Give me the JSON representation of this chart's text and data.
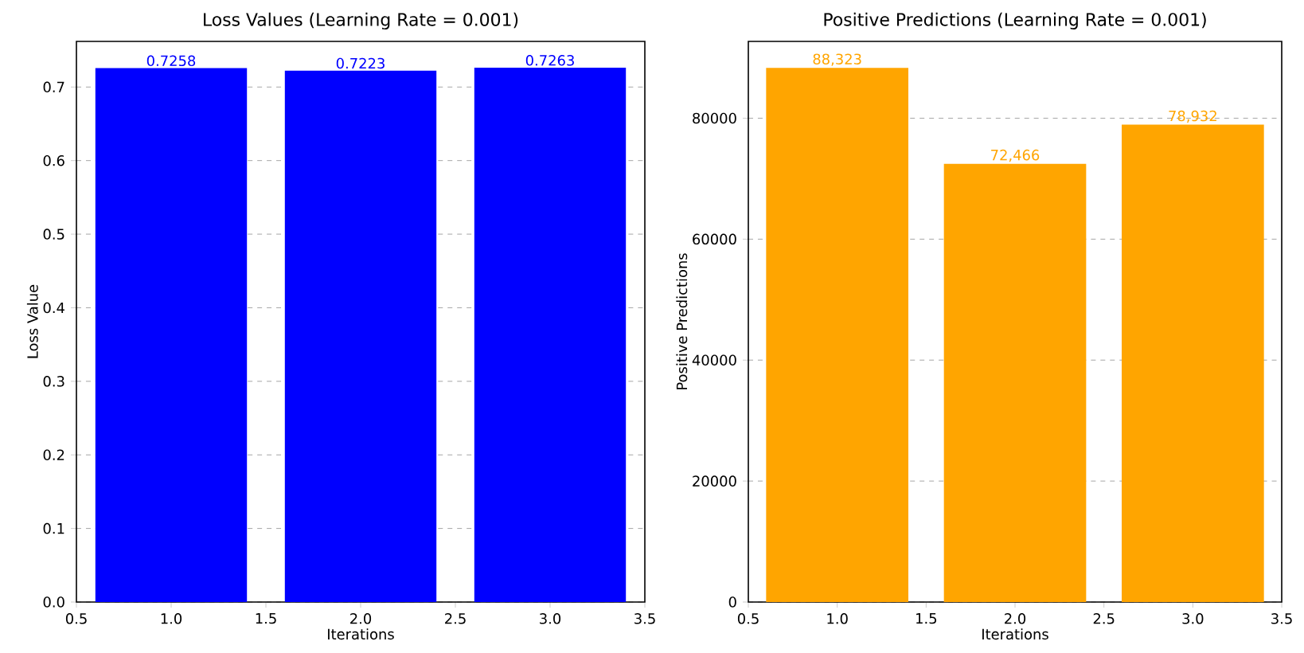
{
  "chart_data": [
    {
      "type": "bar",
      "title": "Loss Values (Learning Rate = 0.001)",
      "xlabel": "Iterations",
      "ylabel": "Loss Value",
      "x": [
        1,
        2,
        3
      ],
      "values": [
        0.7258,
        0.7223,
        0.7263
      ],
      "color": "#0000ff",
      "data_labels": true,
      "xlim": [
        0.5,
        3.5
      ],
      "ylim": [
        0,
        0.762
      ],
      "xticks": [
        0.5,
        {
          "value": 1,
          "label": "1.0"
        },
        1.5,
        {
          "value": 2,
          "label": "2.0"
        },
        2.5,
        {
          "value": 3,
          "label": "3.0"
        },
        3.5
      ],
      "yticks": [
        {
          "value": 0,
          "label": "0.0"
        },
        0.1,
        0.2,
        0.3,
        0.4,
        0.5,
        0.6,
        0.7
      ],
      "grid": "y"
    },
    {
      "type": "bar",
      "title": "Positive Predictions (Learning Rate = 0.001)",
      "xlabel": "Iterations",
      "ylabel": "Positive Predictions",
      "x": [
        1,
        2,
        3
      ],
      "values": [
        88323,
        72466,
        78932
      ],
      "value_labels": [
        "88,323",
        "72,466",
        "78,932"
      ],
      "color": "#ffa500",
      "xlim": [
        0.5,
        3.5
      ],
      "ylim": [
        0,
        92700
      ],
      "xticks": [
        0.5,
        {
          "value": 1,
          "label": "1.0"
        },
        1.5,
        {
          "value": 2,
          "label": "2.0"
        },
        2.5,
        {
          "value": 3,
          "label": "3.0"
        },
        3.5
      ],
      "yticks": [
        0,
        20000,
        40000,
        60000,
        80000
      ],
      "grid": "y"
    }
  ]
}
